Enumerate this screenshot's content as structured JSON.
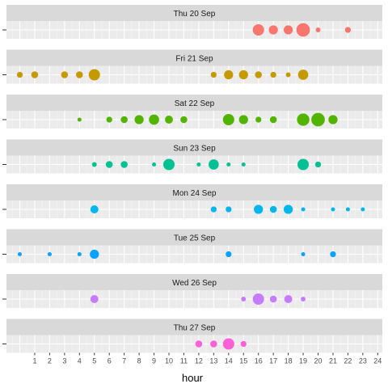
{
  "chart_data": {
    "type": "scatter",
    "xlabel": "hour",
    "xlim": [
      -0.5,
      24
    ],
    "x_ticks": [
      "1",
      "2",
      "3",
      "4",
      "5",
      "6",
      "7",
      "8",
      "9",
      "10",
      "11",
      "12",
      "13",
      "14",
      "15",
      "16",
      "17",
      "18",
      "19",
      "20",
      "21",
      "22",
      "23",
      "24"
    ],
    "grid": true,
    "legend": "none",
    "panels": [
      {
        "label": "Thu 20 Sep",
        "color": "#F8766D",
        "points": [
          {
            "x": 16,
            "size": 4
          },
          {
            "x": 17,
            "size": 3
          },
          {
            "x": 18,
            "size": 3
          },
          {
            "x": 19,
            "size": 5
          },
          {
            "x": 20,
            "size": 1
          },
          {
            "x": 22,
            "size": 1.5
          }
        ]
      },
      {
        "label": "Fri 21 Sep",
        "color": "#C49A00",
        "points": [
          {
            "x": 0,
            "size": 1.5
          },
          {
            "x": 1,
            "size": 2
          },
          {
            "x": 3,
            "size": 2
          },
          {
            "x": 4,
            "size": 2
          },
          {
            "x": 5,
            "size": 4
          },
          {
            "x": 13,
            "size": 1.5
          },
          {
            "x": 14,
            "size": 3
          },
          {
            "x": 15,
            "size": 3
          },
          {
            "x": 16,
            "size": 2
          },
          {
            "x": 17,
            "size": 1.5
          },
          {
            "x": 18,
            "size": 1
          },
          {
            "x": 19,
            "size": 3.5
          }
        ]
      },
      {
        "label": "Sat 22 Sep",
        "color": "#53B400",
        "points": [
          {
            "x": 4,
            "size": 0.7
          },
          {
            "x": 6,
            "size": 1.5
          },
          {
            "x": 7,
            "size": 2
          },
          {
            "x": 8,
            "size": 3
          },
          {
            "x": 9,
            "size": 3.5
          },
          {
            "x": 10,
            "size": 2.5
          },
          {
            "x": 11,
            "size": 2
          },
          {
            "x": 14,
            "size": 4
          },
          {
            "x": 15,
            "size": 3
          },
          {
            "x": 16,
            "size": 1.5
          },
          {
            "x": 17,
            "size": 2
          },
          {
            "x": 19,
            "size": 4.5
          },
          {
            "x": 20,
            "size": 5
          },
          {
            "x": 21,
            "size": 3
          }
        ]
      },
      {
        "label": "Sun 23 Sep",
        "color": "#00C094",
        "points": [
          {
            "x": 5,
            "size": 1
          },
          {
            "x": 6,
            "size": 2
          },
          {
            "x": 7,
            "size": 2
          },
          {
            "x": 9,
            "size": 0.7
          },
          {
            "x": 10,
            "size": 4
          },
          {
            "x": 12,
            "size": 0.7
          },
          {
            "x": 13,
            "size": 3.5
          },
          {
            "x": 14,
            "size": 0.7
          },
          {
            "x": 15,
            "size": 0.7
          },
          {
            "x": 19,
            "size": 4
          },
          {
            "x": 20,
            "size": 1.5
          }
        ]
      },
      {
        "label": "Mon 24 Sep",
        "color": "#00B6EB",
        "points": [
          {
            "x": 5,
            "size": 2.5
          },
          {
            "x": 13,
            "size": 1.5
          },
          {
            "x": 14,
            "size": 1.5
          },
          {
            "x": 16,
            "size": 3
          },
          {
            "x": 17,
            "size": 2
          },
          {
            "x": 18,
            "size": 3
          },
          {
            "x": 19,
            "size": 0.7
          },
          {
            "x": 21,
            "size": 0.7
          },
          {
            "x": 22,
            "size": 0.7
          },
          {
            "x": 23,
            "size": 0.7
          }
        ]
      },
      {
        "label": "Tue 25 Sep",
        "color": "#06A4FF",
        "points": [
          {
            "x": 0,
            "size": 0.7
          },
          {
            "x": 2,
            "size": 0.7
          },
          {
            "x": 4,
            "size": 0.7
          },
          {
            "x": 5,
            "size": 3
          },
          {
            "x": 14,
            "size": 1.5
          },
          {
            "x": 19,
            "size": 0.7
          },
          {
            "x": 21,
            "size": 1.5
          }
        ]
      },
      {
        "label": "Wed 26 Sep",
        "color": "#C77CFF",
        "points": [
          {
            "x": 5,
            "size": 2.5
          },
          {
            "x": 15,
            "size": 1
          },
          {
            "x": 16,
            "size": 4
          },
          {
            "x": 17,
            "size": 2
          },
          {
            "x": 18,
            "size": 2.5
          },
          {
            "x": 19,
            "size": 1
          }
        ]
      },
      {
        "label": "Thu 27 Sep",
        "color": "#FB61D7",
        "points": [
          {
            "x": 12,
            "size": 2
          },
          {
            "x": 13,
            "size": 2
          },
          {
            "x": 14,
            "size": 4
          },
          {
            "x": 15,
            "size": 1.5
          }
        ]
      }
    ]
  }
}
